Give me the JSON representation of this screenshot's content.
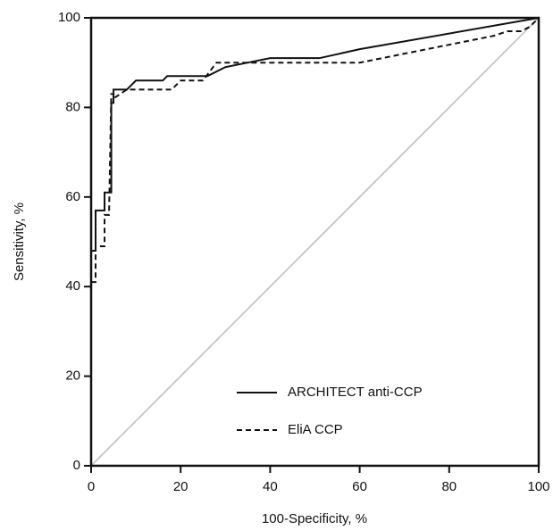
{
  "chart_data": {
    "type": "line",
    "xlabel": "100-Specificity, %",
    "ylabel": "Sensitivity, %",
    "xlim": [
      0,
      100
    ],
    "ylim": [
      0,
      100
    ],
    "xticks": [
      0,
      20,
      40,
      60,
      80,
      100
    ],
    "yticks": [
      0,
      20,
      40,
      60,
      80,
      100
    ],
    "series": [
      {
        "name": "ARCHITECT anti-CCP",
        "color": "#111111",
        "style": "solid",
        "x": [
          0,
          0,
          1,
          1,
          3,
          3,
          4.5,
          4.5,
          5,
          5,
          8,
          9,
          10,
          16,
          17,
          26,
          30,
          35,
          40,
          51,
          60,
          100
        ],
        "values": [
          40,
          48,
          48,
          57,
          57,
          61,
          61,
          81,
          81,
          84,
          84,
          85,
          86,
          86,
          87,
          87,
          89,
          90,
          91,
          91,
          93,
          100
        ]
      },
      {
        "name": "EliA CCP",
        "color": "#111111",
        "style": "dashed",
        "x": [
          0,
          1,
          1,
          3,
          3,
          4,
          4.5,
          5,
          5,
          8,
          18,
          20,
          25,
          28,
          40,
          60,
          70,
          90,
          93,
          96,
          98,
          100
        ],
        "values": [
          41,
          41,
          49,
          49,
          56,
          56,
          83,
          83,
          82,
          84,
          84,
          86,
          86,
          90,
          90,
          90,
          92,
          96,
          97,
          97,
          98,
          100
        ]
      }
    ]
  }
}
